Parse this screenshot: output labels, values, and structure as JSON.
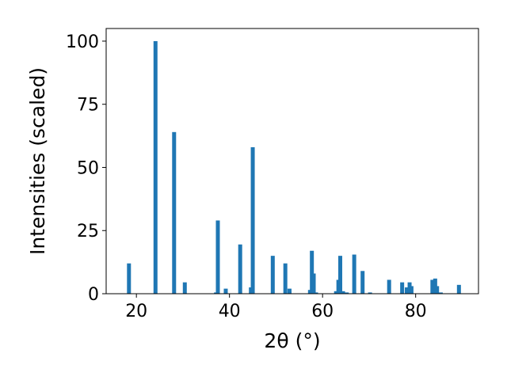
{
  "chart_data": {
    "type": "bar",
    "xlabel": "2θ (°)",
    "ylabel": "Intensities (scaled)",
    "xlim": [
      13.5,
      93.5
    ],
    "ylim": [
      0,
      105
    ],
    "xticks": [
      20,
      40,
      60,
      80
    ],
    "yticks": [
      0,
      25,
      50,
      75,
      100
    ],
    "bar_color": "#1f77b4",
    "grid": false,
    "points": [
      {
        "x": 18.4,
        "y": 12
      },
      {
        "x": 24.1,
        "y": 100
      },
      {
        "x": 28.1,
        "y": 64
      },
      {
        "x": 30.4,
        "y": 4.5
      },
      {
        "x": 37.1,
        "y": 0.5
      },
      {
        "x": 37.5,
        "y": 29
      },
      {
        "x": 39.2,
        "y": 2
      },
      {
        "x": 42.3,
        "y": 19.5
      },
      {
        "x": 44.6,
        "y": 2.5
      },
      {
        "x": 45.0,
        "y": 58
      },
      {
        "x": 49.3,
        "y": 15
      },
      {
        "x": 52.0,
        "y": 12
      },
      {
        "x": 52.9,
        "y": 2
      },
      {
        "x": 57.3,
        "y": 1.5
      },
      {
        "x": 57.7,
        "y": 17
      },
      {
        "x": 58.1,
        "y": 8
      },
      {
        "x": 58.6,
        "y": 0.5
      },
      {
        "x": 62.9,
        "y": 1
      },
      {
        "x": 63.4,
        "y": 5.5
      },
      {
        "x": 63.8,
        "y": 15
      },
      {
        "x": 64.4,
        "y": 1
      },
      {
        "x": 65.2,
        "y": 0.5
      },
      {
        "x": 66.8,
        "y": 15.5
      },
      {
        "x": 68.6,
        "y": 9
      },
      {
        "x": 70.2,
        "y": 0.5
      },
      {
        "x": 74.3,
        "y": 5.5
      },
      {
        "x": 77.1,
        "y": 4.5
      },
      {
        "x": 78.1,
        "y": 2.5
      },
      {
        "x": 78.7,
        "y": 4.5
      },
      {
        "x": 79.1,
        "y": 3
      },
      {
        "x": 83.6,
        "y": 5.5
      },
      {
        "x": 84.2,
        "y": 6
      },
      {
        "x": 84.6,
        "y": 3
      },
      {
        "x": 85.4,
        "y": 0.5
      },
      {
        "x": 89.3,
        "y": 3.5
      }
    ]
  }
}
